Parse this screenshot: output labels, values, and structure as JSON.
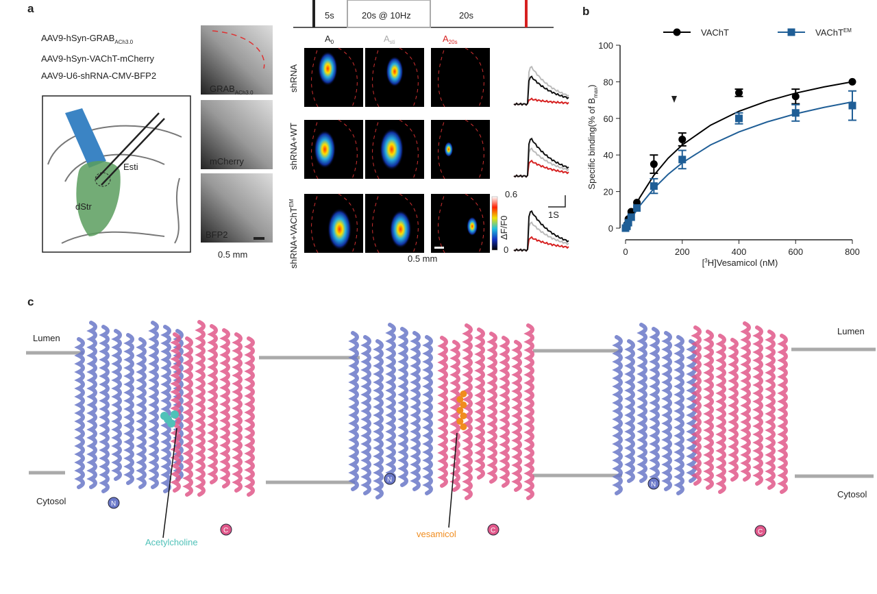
{
  "panel_a": {
    "letter": "a",
    "constructs": [
      [
        "AAV9-hSyn-GRAB",
        "ACh3.0"
      ],
      [
        "AAV9-hSyn-VAChT-mCherry"
      ],
      [
        "AAV9-U6-shRNA-CMV-BFP2"
      ]
    ],
    "schematic": {
      "electrode": "Esti",
      "region": "dStr"
    },
    "images": [
      [
        "GRAB",
        "ACh3.0"
      ],
      [
        "mCherry"
      ],
      [
        "BFP2"
      ]
    ],
    "image_scale": "0.5 mm",
    "protocol": [
      "5s",
      "20s @ 10Hz",
      "20s"
    ],
    "columns": [
      [
        "A",
        "0"
      ],
      [
        "A",
        "sti"
      ],
      [
        "A",
        "20s"
      ]
    ],
    "rows": [
      [
        "shRNA"
      ],
      [
        "shRNA+WT"
      ],
      [
        "shRNA+VAChT",
        "EM"
      ]
    ],
    "colorbar": {
      "max": "0.6",
      "min": "0",
      "label": "ΔF/F0"
    },
    "trace_scale": "1S",
    "heatmap_scale": "0.5 mm"
  },
  "chart_data": {
    "type": "scatter",
    "letter": "b",
    "x_label": [
      "[",
      "3",
      "H]Vesamicol (nM)"
    ],
    "y_label": [
      "Specific binding(% of B",
      "max",
      ")"
    ],
    "x": [
      0,
      5,
      10,
      20,
      40,
      100,
      200,
      400,
      600,
      800
    ],
    "series": [
      {
        "name": "VAChT",
        "color": "#000000",
        "marker": "circle",
        "values": [
          0,
          2,
          5,
          9,
          14,
          35,
          48.5,
          74,
          72,
          80
        ],
        "errors": [
          0,
          0,
          0,
          0,
          0,
          5,
          3.5,
          2,
          4,
          0
        ],
        "fit_x": [
          0,
          25,
          50,
          100,
          150,
          200,
          300,
          400,
          500,
          600,
          700,
          800
        ],
        "fit": [
          0,
          9.1,
          16.7,
          28.9,
          38.2,
          45.5,
          56.3,
          63.9,
          69.5,
          73.8,
          77.2,
          80
        ]
      },
      {
        "name": "VAChT",
        "name_sup": "EM",
        "color": "#1f5e96",
        "marker": "square",
        "values": [
          0,
          1,
          3,
          6,
          11,
          23,
          37.5,
          60,
          63,
          67
        ],
        "errors": [
          0,
          0,
          0,
          0,
          0,
          4,
          5,
          3,
          4.5,
          8
        ],
        "fit_x": [
          0,
          25,
          50,
          100,
          150,
          200,
          300,
          400,
          500,
          600,
          700,
          800
        ],
        "fit": [
          0,
          6.5,
          12.2,
          21.7,
          29.4,
          35.7,
          45.5,
          52.6,
          58.1,
          62.5,
          66,
          69
        ]
      }
    ],
    "xlim": [
      0,
      800
    ],
    "xticks": [
      0,
      200,
      400,
      600,
      800
    ],
    "ylim": [
      0,
      100
    ],
    "yticks": [
      0,
      20,
      40,
      60,
      80,
      100
    ],
    "legend": "top"
  },
  "panel_c": {
    "letter": "c",
    "lumen": "Lumen",
    "cytosol": "Cytosol",
    "ligands": [
      "Acetylcholine",
      "vesamicol"
    ],
    "termini": [
      "N",
      "C"
    ]
  }
}
